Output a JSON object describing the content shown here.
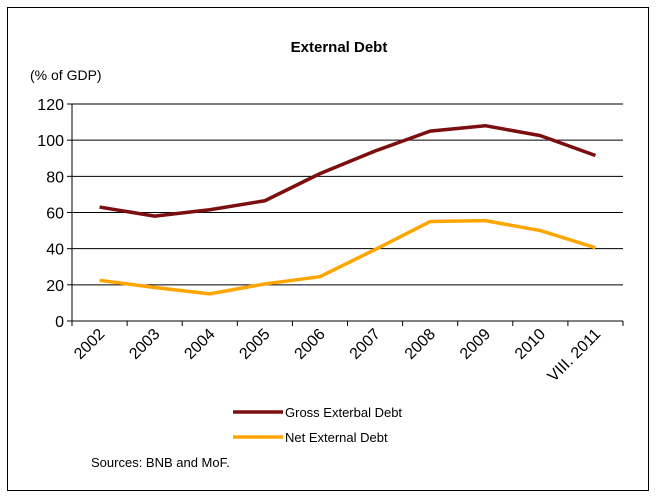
{
  "chart_data": {
    "type": "line",
    "title": "External Debt",
    "ylabel": "(% of GDP)",
    "xlabel": "",
    "categories": [
      "2002",
      "2003",
      "2004",
      "2005",
      "2006",
      "2007",
      "2008",
      "2009",
      "2010",
      "VIII. 2011"
    ],
    "ylim": [
      0,
      120
    ],
    "yticks": [
      "0",
      "20",
      "40",
      "60",
      "80",
      "100",
      "120"
    ],
    "grid": true,
    "legend_position": "bottom",
    "series": [
      {
        "name": "Gross Exterbal Debt",
        "color": "#7B0F0F",
        "values": [
          63,
          58,
          61.5,
          66.5,
          81.5,
          94,
          105,
          108,
          102.5,
          91.5
        ]
      },
      {
        "name": "Net External Debt",
        "color": "#FFA500",
        "values": [
          22.5,
          18.5,
          15,
          20.5,
          24.5,
          39.5,
          55,
          55.5,
          50,
          40.5
        ]
      }
    ],
    "source_note": "Sources: BNB and MoF."
  }
}
